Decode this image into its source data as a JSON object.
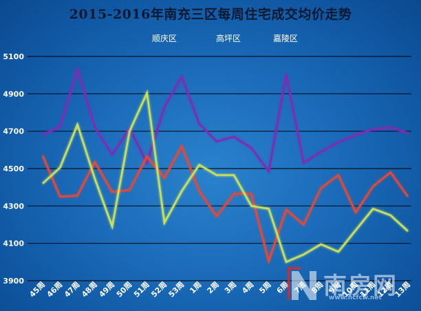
{
  "chart_data": {
    "type": "line",
    "title": "2015-2016年南充三区每周住宅成交均价走势",
    "categories": [
      "45周",
      "46周",
      "47周",
      "48周",
      "49周",
      "50周",
      "51周",
      "52周",
      "53周",
      "1周",
      "2周",
      "3周",
      "4周",
      "5周",
      "6周",
      "7周",
      "8周",
      "9周",
      "10周",
      "11周",
      "12周",
      "13周"
    ],
    "ylim": [
      3900,
      5100
    ],
    "yticks": [
      3900,
      4100,
      4300,
      4500,
      4700,
      4900,
      5100
    ],
    "grid": true,
    "legend_position": "top",
    "series": [
      {
        "name": "顺庆区",
        "color": "#7a2fb5",
        "values": [
          4680,
          4725,
          5030,
          4720,
          4575,
          4715,
          4530,
          4830,
          4990,
          4740,
          4645,
          4670,
          4610,
          4485,
          5005,
          4530,
          4590,
          4640,
          4680,
          4710,
          4720,
          4690
        ]
      },
      {
        "name": "高坪区",
        "color": "#e04a3a",
        "values": [
          4570,
          4350,
          4355,
          4535,
          4375,
          4385,
          4565,
          4450,
          4620,
          4380,
          4245,
          4365,
          4365,
          4005,
          4280,
          4200,
          4395,
          4465,
          4265,
          4405,
          4480,
          4350
        ]
      },
      {
        "name": "嘉陵区",
        "color": "#c8e060",
        "values": [
          4420,
          4505,
          4735,
          4445,
          4190,
          4700,
          4905,
          4210,
          4380,
          4520,
          4465,
          4465,
          4300,
          4285,
          4000,
          4040,
          4095,
          4055,
          4170,
          4285,
          4250,
          4165
        ]
      }
    ]
  },
  "watermark": {
    "logo_text": "南房网",
    "url": "www.ncfcw.net",
    "logo_icon": "n-logo-icon"
  }
}
